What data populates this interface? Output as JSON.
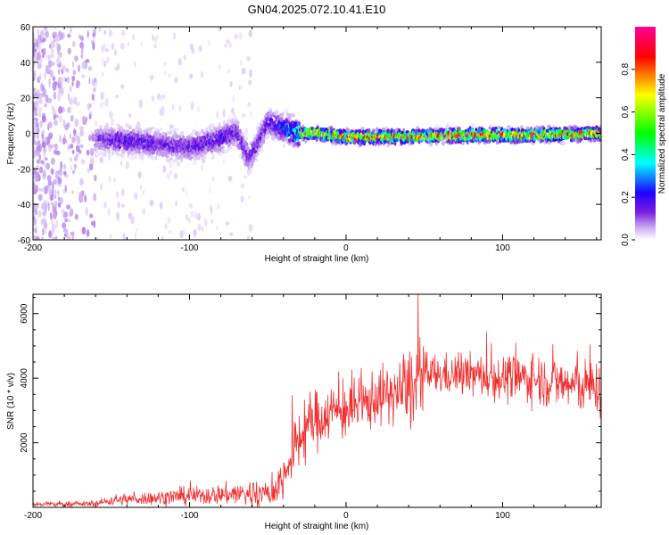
{
  "title": "GN04.2025.072.10.41.E10",
  "chart_data": [
    {
      "type": "heatmap",
      "title": "GN04.2025.072.10.41.E10",
      "xlabel": "Height of straight line (km)",
      "ylabel": "Frequency (Hz)",
      "xlim": [
        -200,
        163
      ],
      "ylim": [
        -60,
        60
      ],
      "xticks": [
        -200,
        -100,
        0,
        100
      ],
      "yticks": [
        60,
        40,
        20,
        0,
        -20,
        -40,
        -60
      ],
      "colorbar": {
        "label": "Normalized spectral amplitude",
        "range": [
          0,
          1
        ],
        "ticks": [
          0.0,
          0.2,
          0.4,
          0.6,
          0.8
        ],
        "colormap": [
          "#ffffff",
          "#c8a8f0",
          "#7a1ee0",
          "#2000ff",
          "#00ffff",
          "#00ff00",
          "#ffff00",
          "#ff0000",
          "#ff00a0"
        ]
      },
      "ridge": {
        "x": [
          -160,
          -140,
          -120,
          -100,
          -80,
          -70,
          -62,
          -50,
          -40,
          -30,
          -20,
          0,
          40,
          80,
          120,
          163
        ],
        "center_hz": [
          -3,
          -4,
          -6,
          -8,
          -3,
          1,
          -15,
          6,
          3,
          0,
          0,
          -2,
          -2,
          -1,
          -1,
          0
        ],
        "peak_amplitude": [
          0.25,
          0.35,
          0.3,
          0.3,
          0.35,
          0.3,
          0.3,
          0.3,
          0.45,
          0.75,
          0.85,
          0.9,
          0.9,
          0.95,
          0.95,
          0.9
        ]
      },
      "noise_region_x": [
        -200,
        -160
      ]
    },
    {
      "type": "line",
      "xlabel": "Height of straight line (km)",
      "ylabel": "SNR (10 * v/v)",
      "xlim": [
        -200,
        163
      ],
      "ylim": [
        0,
        6600
      ],
      "xticks": [
        -200,
        -100,
        0,
        100
      ],
      "yticks": [
        2000,
        4000,
        6000
      ],
      "color": "#f03030",
      "envelope": {
        "x": [
          -200,
          -160,
          -150,
          -120,
          -100,
          -80,
          -70,
          -60,
          -50,
          -45,
          -40,
          -35,
          -30,
          -25,
          -20,
          -15,
          -10,
          -5,
          0,
          10,
          20,
          30,
          40,
          45,
          50,
          60,
          80,
          100,
          120,
          140,
          163
        ],
        "mean": [
          90,
          110,
          220,
          300,
          350,
          400,
          420,
          420,
          380,
          550,
          950,
          1500,
          2100,
          2500,
          2700,
          2800,
          3000,
          2950,
          3000,
          3100,
          3450,
          3500,
          3650,
          3700,
          4100,
          4100,
          4100,
          4000,
          4000,
          3800,
          3700
        ],
        "spread": [
          60,
          80,
          150,
          200,
          250,
          280,
          350,
          450,
          400,
          450,
          650,
          800,
          900,
          900,
          850,
          800,
          800,
          800,
          800,
          800,
          800,
          800,
          1100,
          1300,
          700,
          550,
          600,
          650,
          700,
          750,
          800
        ]
      },
      "peak": {
        "x": 46,
        "y": 6620
      }
    }
  ]
}
